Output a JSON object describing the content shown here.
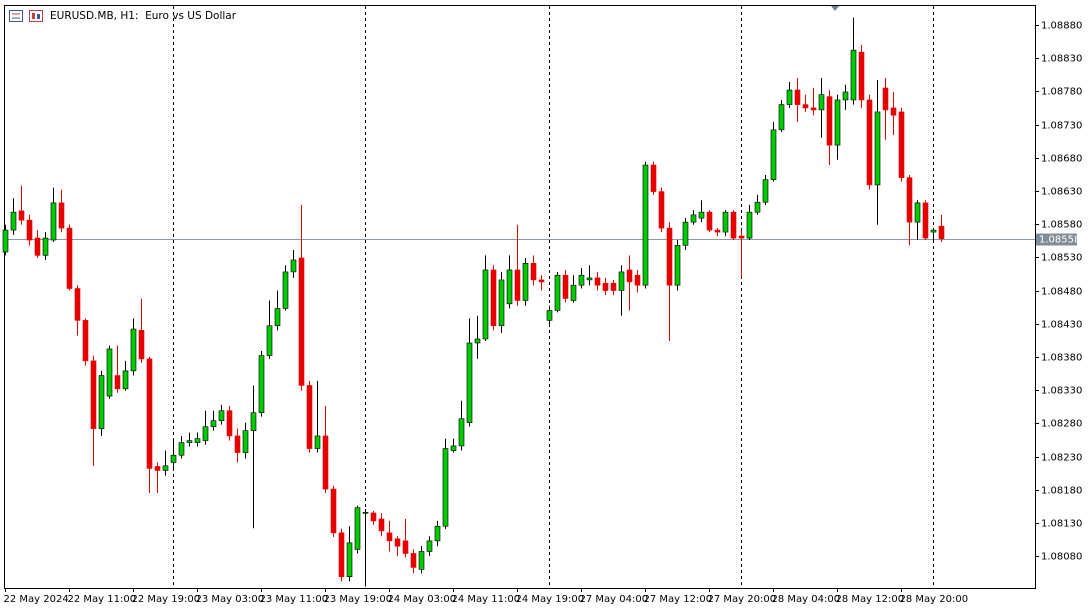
{
  "chart_data": {
    "type": "candlestick",
    "title": "EURUSD.MB, H1:  Euro vs US Dollar",
    "categories": [
      "22 May 2024",
      null,
      null,
      null,
      null,
      null,
      null,
      null,
      "22 May 11:00",
      null,
      null,
      null,
      null,
      null,
      null,
      null,
      "22 May 19:00",
      null,
      null,
      null,
      null,
      null,
      null,
      null,
      "23 May 03:00",
      null,
      null,
      null,
      null,
      null,
      null,
      null,
      "23 May 11:00",
      null,
      null,
      null,
      null,
      null,
      null,
      null,
      "23 May 19:00",
      null,
      null,
      null,
      null,
      null,
      null,
      null,
      "24 May 03:00",
      null,
      null,
      null,
      null,
      null,
      null,
      null,
      "24 May 11:00",
      null,
      null,
      null,
      null,
      null,
      null,
      null,
      "24 May 19:00",
      null,
      null,
      null,
      null,
      null,
      null,
      null,
      "27 May 04:00",
      null,
      null,
      null,
      null,
      null,
      null,
      null,
      "27 May 12:00",
      null,
      null,
      null,
      null,
      null,
      null,
      null,
      "27 May 20:00",
      null,
      null,
      null,
      null,
      null,
      null,
      null,
      "28 May 04:00",
      null,
      null,
      null,
      null,
      null,
      null,
      null,
      "28 May 12:00",
      null,
      null,
      null,
      null,
      null,
      null,
      null,
      "28 May 20:00",
      null,
      null,
      null,
      null,
      null
    ],
    "open": [
      1.08538,
      1.08571,
      1.086,
      1.08586,
      1.08559,
      1.08533,
      1.08556,
      1.08612,
      1.08574,
      1.08483,
      1.08435,
      1.08374,
      1.08272,
      1.08321,
      1.08352,
      1.08332,
      1.08359,
      1.0842,
      1.08377,
      1.08215,
      1.08209,
      1.08221,
      1.08232,
      1.08251,
      1.08251,
      1.08254,
      1.08275,
      1.08284,
      1.08299,
      1.08261,
      1.08236,
      1.08269,
      1.08296,
      1.08382,
      1.08427,
      1.08453,
      1.08508,
      1.08529,
      1.08337,
      1.08242,
      1.08261,
      1.08181,
      1.08115,
      1.08049,
      1.0809,
      1.08145,
      1.08145,
      1.08136,
      1.08115,
      1.08106,
      1.08103,
      1.08084,
      1.0806,
      1.08087,
      1.08103,
      1.08125,
      1.08239,
      1.08246,
      1.08281,
      1.08401,
      1.08407,
      1.08511,
      1.08427,
      1.0846,
      1.08511,
      1.08465,
      1.08521,
      1.08496,
      1.08435,
      1.0845,
      1.08503,
      1.08465,
      1.08488,
      1.08496,
      1.08499,
      1.08491,
      1.08491,
      1.0848,
      1.08511,
      1.08503,
      1.08488,
      1.08669,
      1.08629,
      1.08574,
      1.08488,
      1.08548,
      1.08583,
      1.08589,
      1.08598,
      1.08571,
      1.08568,
      1.08598,
      1.08562,
      1.08559,
      1.08598,
      1.08613,
      1.08647,
      1.08722,
      1.0876,
      1.08782,
      1.0876,
      1.08755,
      1.08752,
      1.08772,
      1.08699,
      1.08767,
      1.08767,
      1.08839,
      1.08767,
      1.08639,
      1.08785,
      1.08755,
      1.08749,
      1.0865,
      1.08583,
      1.08612,
      1.08568,
      1.08577
    ],
    "high": [
      1.08579,
      1.08619,
      1.08638,
      1.08594,
      1.08571,
      1.08568,
      1.08635,
      1.08632,
      1.08579,
      1.08488,
      1.08438,
      1.08382,
      1.08359,
      1.08397,
      1.08397,
      1.08374,
      1.08438,
      1.08468,
      1.0838,
      1.08221,
      1.08239,
      1.08254,
      1.08261,
      1.08266,
      1.08266,
      1.08299,
      1.08299,
      1.08308,
      1.08306,
      1.08272,
      1.08281,
      1.08337,
      1.08389,
      1.08465,
      1.0848,
      1.08518,
      1.08541,
      1.08609,
      1.08344,
      1.08344,
      1.08306,
      1.08186,
      1.08121,
      1.08125,
      1.08156,
      1.08151,
      1.08148,
      1.08145,
      1.08133,
      1.0811,
      1.08136,
      1.0809,
      1.08095,
      1.0811,
      1.08133,
      1.08257,
      1.08257,
      1.08314,
      1.08438,
      1.08442,
      1.08533,
      1.08518,
      1.08508,
      1.08533,
      1.08579,
      1.08529,
      1.08533,
      1.08503,
      1.08457,
      1.08508,
      1.08511,
      1.08503,
      1.08514,
      1.08518,
      1.08508,
      1.08499,
      1.08496,
      1.08518,
      1.08533,
      1.08511,
      1.08674,
      1.08674,
      1.08635,
      1.08583,
      1.08556,
      1.08589,
      1.08601,
      1.08616,
      1.08601,
      1.08574,
      1.08601,
      1.08601,
      1.08571,
      1.08609,
      1.08624,
      1.08654,
      1.08734,
      1.08767,
      1.08794,
      1.088,
      1.08775,
      1.08785,
      1.088,
      1.08782,
      1.08775,
      1.0879,
      1.08891,
      1.0885,
      1.08775,
      1.08797,
      1.088,
      1.08779,
      1.08755,
      1.08654,
      1.08616,
      1.08616,
      1.08574,
      1.08594
    ],
    "low": [
      1.08533,
      1.08564,
      1.08579,
      1.08548,
      1.08529,
      1.08526,
      1.08553,
      1.08568,
      1.0848,
      1.08412,
      1.08367,
      1.08216,
      1.08261,
      1.08317,
      1.08326,
      1.08329,
      1.08352,
      1.08371,
      1.08175,
      1.08175,
      1.08201,
      1.08212,
      1.08227,
      1.08245,
      1.08245,
      1.08248,
      1.08269,
      1.08278,
      1.08254,
      1.08221,
      1.08227,
      1.08122,
      1.0829,
      1.08377,
      1.0842,
      1.0845,
      1.08499,
      1.08329,
      1.08236,
      1.08236,
      1.08175,
      1.08109,
      1.08042,
      1.08042,
      1.08084,
      1.08034,
      1.08127,
      1.0811,
      1.08087,
      1.0808,
      1.08078,
      1.08054,
      1.08054,
      1.0808,
      1.08095,
      1.08121,
      1.08236,
      1.08239,
      1.08275,
      1.08377,
      1.08404,
      1.0842,
      1.08416,
      1.08453,
      1.08457,
      1.08457,
      1.08488,
      1.0848,
      1.08427,
      1.08447,
      1.08462,
      1.08462,
      1.08483,
      1.08488,
      1.0848,
      1.08473,
      1.08473,
      1.08442,
      1.0845,
      1.08477,
      1.08483,
      1.08624,
      1.08568,
      1.08404,
      1.0848,
      1.08541,
      1.08579,
      1.08583,
      1.08568,
      1.08562,
      1.08562,
      1.08556,
      1.08499,
      1.08556,
      1.08594,
      1.08609,
      1.08644,
      1.08719,
      1.08755,
      1.08734,
      1.08749,
      1.08744,
      1.0871,
      1.08669,
      1.08677,
      1.08752,
      1.0876,
      1.08755,
      1.08632,
      1.08579,
      1.08707,
      1.08714,
      1.08644,
      1.08548,
      1.08556,
      1.08556,
      1.08556,
      1.08553
    ],
    "close": [
      1.08571,
      1.08598,
      1.08586,
      1.08556,
      1.08533,
      1.08559,
      1.08612,
      1.08574,
      1.08483,
      1.08435,
      1.08374,
      1.08272,
      1.08352,
      1.08392,
      1.08332,
      1.08359,
      1.08422,
      1.08377,
      1.08212,
      1.08209,
      1.08216,
      1.08232,
      1.08251,
      1.08254,
      1.08257,
      1.08275,
      1.08284,
      1.08299,
      1.08261,
      1.08236,
      1.08269,
      1.08296,
      1.08382,
      1.08427,
      1.08453,
      1.08508,
      1.08526,
      1.08337,
      1.08242,
      1.08261,
      1.08181,
      1.08115,
      1.08049,
      1.081,
      1.08153,
      1.08146,
      1.08133,
      1.08118,
      1.08103,
      1.08095,
      1.08084,
      1.08063,
      1.08087,
      1.08103,
      1.08125,
      1.08242,
      1.08246,
      1.08287,
      1.08401,
      1.08407,
      1.08511,
      1.08427,
      1.08496,
      1.08511,
      1.08465,
      1.08521,
      1.08496,
      1.08493,
      1.0845,
      1.08503,
      1.08468,
      1.08488,
      1.08503,
      1.08499,
      1.08488,
      1.0848,
      1.0848,
      1.08508,
      1.08493,
      1.08488,
      1.08669,
      1.08629,
      1.08574,
      1.08488,
      1.08548,
      1.08583,
      1.08594,
      1.08598,
      1.08571,
      1.08568,
      1.08598,
      1.08559,
      1.08559,
      1.08598,
      1.08613,
      1.08647,
      1.08722,
      1.0876,
      1.08782,
      1.0876,
      1.08755,
      1.08752,
      1.08775,
      1.08699,
      1.08767,
      1.08779,
      1.08842,
      1.08767,
      1.08639,
      1.08749,
      1.08752,
      1.08744,
      1.0865,
      1.08583,
      1.08612,
      1.08559,
      1.08571,
      1.08558
    ],
    "up_color": "#00c800",
    "down_color": "#e60000",
    "last_price": 1.08558,
    "ylim": [
      1.08032,
      1.0891
    ],
    "yticks": [
      {
        "value": 1.0808,
        "label": "1.08080"
      },
      {
        "value": 1.0813,
        "label": "1.08130"
      },
      {
        "value": 1.0818,
        "label": "1.08180"
      },
      {
        "value": 1.0823,
        "label": "1.08230"
      },
      {
        "value": 1.0828,
        "label": "1.08280"
      },
      {
        "value": 1.0833,
        "label": "1.08330"
      },
      {
        "value": 1.0838,
        "label": "1.08380"
      },
      {
        "value": 1.0843,
        "label": "1.08430"
      },
      {
        "value": 1.0848,
        "label": "1.08480"
      },
      {
        "value": 1.0853,
        "label": "1.08530"
      },
      {
        "value": 1.0858,
        "label": "1.08580"
      },
      {
        "value": 1.0863,
        "label": "1.08630"
      },
      {
        "value": 1.0868,
        "label": "1.08680"
      },
      {
        "value": 1.0873,
        "label": "1.08730"
      },
      {
        "value": 1.0878,
        "label": "1.08780"
      },
      {
        "value": 1.0883,
        "label": "1.08830"
      },
      {
        "value": 1.0888,
        "label": "1.08880"
      }
    ],
    "grid": false
  }
}
